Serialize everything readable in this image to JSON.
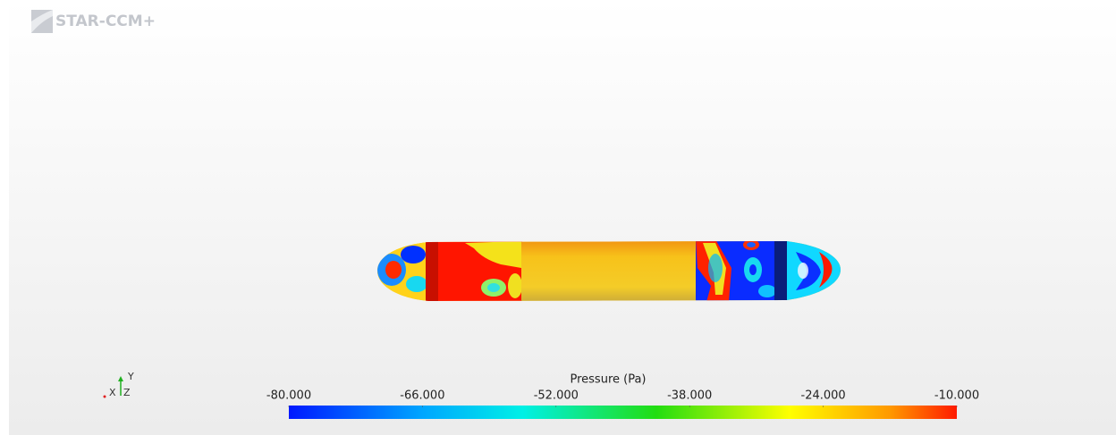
{
  "logo": "STAR-CCM+",
  "colorbar": {
    "title": "Pressure (Pa)",
    "range": [
      -80,
      -10
    ],
    "ticks": [
      {
        "value": -80,
        "label": "-80.000"
      },
      {
        "value": -66,
        "label": "-66.000"
      },
      {
        "value": -52,
        "label": "-52.000"
      },
      {
        "value": -38,
        "label": "-38.000"
      },
      {
        "value": -24,
        "label": "-24.000"
      },
      {
        "value": -10,
        "label": "-10.000"
      }
    ]
  },
  "axes_triad": {
    "y": "Y",
    "x": "X",
    "z": "Z"
  }
}
